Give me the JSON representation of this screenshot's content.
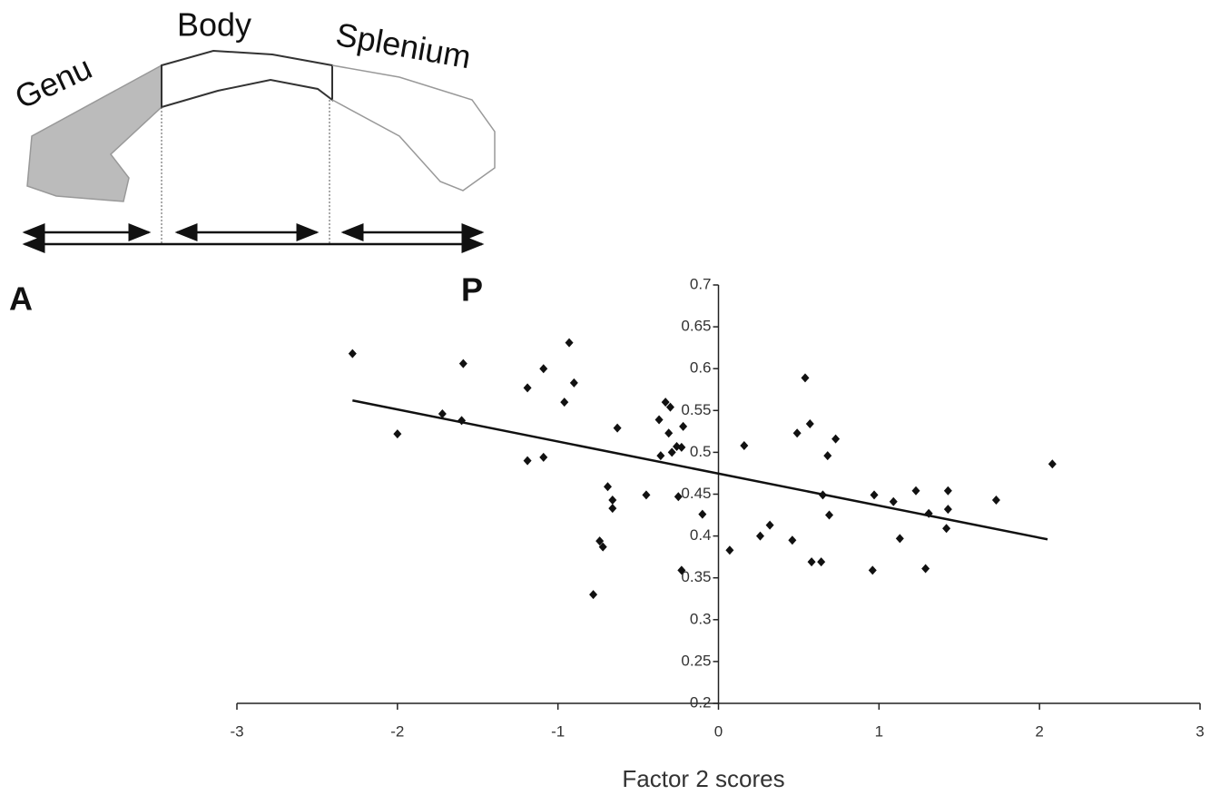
{
  "diagram": {
    "genu": "Genu",
    "body": "Body",
    "splenium": "Splenium",
    "anterior": "A",
    "posterior": "P"
  },
  "chart_data": {
    "type": "scatter",
    "x_label": "Factor 2 scores",
    "xlim": [
      -3,
      3
    ],
    "xticks": [
      -3,
      -2,
      -1,
      0,
      1,
      2,
      3
    ],
    "ylim": [
      0.2,
      0.7
    ],
    "yticks": [
      0.2,
      0.25,
      0.3,
      0.35,
      0.4,
      0.45,
      0.5,
      0.55,
      0.6,
      0.65,
      0.7
    ],
    "color": "#111111",
    "x": [
      -2.28,
      -2.0,
      -1.59,
      -1.72,
      -1.6,
      -1.19,
      -1.09,
      -1.19,
      -1.09,
      -0.93,
      -0.9,
      -0.96,
      -0.78,
      -0.69,
      -0.66,
      -0.66,
      -0.63,
      -0.74,
      -0.72,
      -0.45,
      -0.37,
      -0.33,
      -0.31,
      -0.36,
      -0.29,
      -0.26,
      -0.23,
      -0.22,
      -0.3,
      -0.25,
      -0.23,
      -0.1,
      0.07,
      0.16,
      0.26,
      0.32,
      0.46,
      0.49,
      0.54,
      0.57,
      0.58,
      0.64,
      0.65,
      0.68,
      0.69,
      0.73,
      0.96,
      0.97,
      1.09,
      1.13,
      1.23,
      1.29,
      1.31,
      1.42,
      1.43,
      1.43,
      1.73,
      2.08
    ],
    "y": [
      0.618,
      0.522,
      0.606,
      0.546,
      0.538,
      0.577,
      0.6,
      0.49,
      0.494,
      0.631,
      0.583,
      0.56,
      0.33,
      0.459,
      0.443,
      0.433,
      0.529,
      0.394,
      0.387,
      0.449,
      0.539,
      0.56,
      0.523,
      0.496,
      0.5,
      0.507,
      0.506,
      0.531,
      0.554,
      0.447,
      0.359,
      0.426,
      0.383,
      0.508,
      0.4,
      0.413,
      0.395,
      0.523,
      0.589,
      0.534,
      0.369,
      0.369,
      0.449,
      0.496,
      0.425,
      0.516,
      0.359,
      0.449,
      0.441,
      0.397,
      0.454,
      0.361,
      0.427,
      0.409,
      0.432,
      0.454,
      0.443,
      0.486
    ],
    "trendline": {
      "x": [
        -2.28,
        2.05
      ],
      "y": [
        0.562,
        0.396
      ]
    }
  }
}
